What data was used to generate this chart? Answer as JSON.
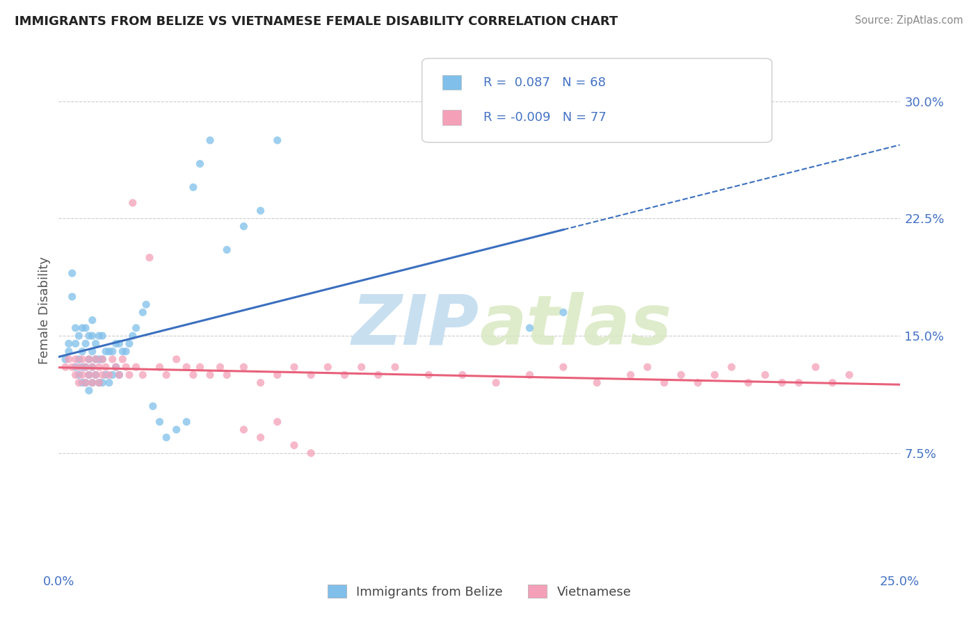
{
  "title": "IMMIGRANTS FROM BELIZE VS VIETNAMESE FEMALE DISABILITY CORRELATION CHART",
  "source_text": "Source: ZipAtlas.com",
  "ylabel": "Female Disability",
  "legend_label1": "Immigrants from Belize",
  "legend_label2": "Vietnamese",
  "r1": 0.087,
  "n1": 68,
  "r2": -0.009,
  "n2": 77,
  "xmin": 0.0,
  "xmax": 0.25,
  "ymin": 0.0,
  "ymax": 0.333,
  "yticks": [
    0.0,
    0.075,
    0.15,
    0.225,
    0.3
  ],
  "ytick_labels": [
    "",
    "7.5%",
    "15.0%",
    "22.5%",
    "30.0%"
  ],
  "xtick_labels": [
    "0.0%",
    "25.0%"
  ],
  "color1": "#7fbfea",
  "color2": "#f4a0b8",
  "trendline1_color": "#3a6fbf",
  "trendline2_color": "#e8607a",
  "background_color": "#ffffff",
  "grid_color": "#cccccc",
  "title_color": "#222222",
  "axis_label_color": "#555555",
  "tick_color": "#4472c4",
  "watermark_color": "#daeaf7",
  "scatter1_x": [
    0.002,
    0.003,
    0.003,
    0.004,
    0.004,
    0.005,
    0.005,
    0.005,
    0.006,
    0.006,
    0.006,
    0.007,
    0.007,
    0.007,
    0.007,
    0.008,
    0.008,
    0.008,
    0.008,
    0.009,
    0.009,
    0.009,
    0.009,
    0.01,
    0.01,
    0.01,
    0.01,
    0.01,
    0.011,
    0.011,
    0.011,
    0.012,
    0.012,
    0.012,
    0.013,
    0.013,
    0.013,
    0.014,
    0.014,
    0.015,
    0.015,
    0.016,
    0.016,
    0.017,
    0.017,
    0.018,
    0.018,
    0.019,
    0.02,
    0.021,
    0.022,
    0.023,
    0.025,
    0.026,
    0.028,
    0.03,
    0.032,
    0.035,
    0.038,
    0.04,
    0.042,
    0.045,
    0.05,
    0.055,
    0.06,
    0.065,
    0.14,
    0.15
  ],
  "scatter1_y": [
    0.135,
    0.14,
    0.145,
    0.175,
    0.19,
    0.13,
    0.145,
    0.155,
    0.125,
    0.135,
    0.15,
    0.12,
    0.13,
    0.14,
    0.155,
    0.12,
    0.13,
    0.145,
    0.155,
    0.115,
    0.125,
    0.135,
    0.15,
    0.12,
    0.13,
    0.14,
    0.15,
    0.16,
    0.125,
    0.135,
    0.145,
    0.12,
    0.135,
    0.15,
    0.12,
    0.135,
    0.15,
    0.125,
    0.14,
    0.12,
    0.14,
    0.125,
    0.14,
    0.13,
    0.145,
    0.125,
    0.145,
    0.14,
    0.14,
    0.145,
    0.15,
    0.155,
    0.165,
    0.17,
    0.105,
    0.095,
    0.085,
    0.09,
    0.095,
    0.245,
    0.26,
    0.275,
    0.205,
    0.22,
    0.23,
    0.275,
    0.155,
    0.165
  ],
  "scatter2_x": [
    0.002,
    0.003,
    0.004,
    0.005,
    0.005,
    0.006,
    0.006,
    0.007,
    0.007,
    0.008,
    0.008,
    0.009,
    0.009,
    0.01,
    0.01,
    0.011,
    0.011,
    0.012,
    0.012,
    0.013,
    0.013,
    0.014,
    0.015,
    0.016,
    0.017,
    0.018,
    0.019,
    0.02,
    0.021,
    0.022,
    0.023,
    0.025,
    0.027,
    0.03,
    0.032,
    0.035,
    0.038,
    0.04,
    0.042,
    0.045,
    0.048,
    0.05,
    0.055,
    0.06,
    0.065,
    0.07,
    0.075,
    0.08,
    0.085,
    0.09,
    0.095,
    0.1,
    0.11,
    0.12,
    0.13,
    0.14,
    0.15,
    0.16,
    0.17,
    0.175,
    0.18,
    0.185,
    0.19,
    0.195,
    0.2,
    0.205,
    0.21,
    0.215,
    0.22,
    0.225,
    0.23,
    0.055,
    0.06,
    0.065,
    0.07,
    0.075,
    0.235
  ],
  "scatter2_y": [
    0.13,
    0.135,
    0.13,
    0.125,
    0.135,
    0.12,
    0.13,
    0.125,
    0.135,
    0.12,
    0.13,
    0.125,
    0.135,
    0.12,
    0.13,
    0.125,
    0.135,
    0.12,
    0.13,
    0.125,
    0.135,
    0.13,
    0.125,
    0.135,
    0.13,
    0.125,
    0.135,
    0.13,
    0.125,
    0.235,
    0.13,
    0.125,
    0.2,
    0.13,
    0.125,
    0.135,
    0.13,
    0.125,
    0.13,
    0.125,
    0.13,
    0.125,
    0.13,
    0.12,
    0.125,
    0.13,
    0.125,
    0.13,
    0.125,
    0.13,
    0.125,
    0.13,
    0.125,
    0.125,
    0.12,
    0.125,
    0.13,
    0.12,
    0.125,
    0.13,
    0.12,
    0.125,
    0.12,
    0.125,
    0.13,
    0.12,
    0.125,
    0.12,
    0.12,
    0.13,
    0.12,
    0.09,
    0.085,
    0.095,
    0.08,
    0.075,
    0.125
  ]
}
